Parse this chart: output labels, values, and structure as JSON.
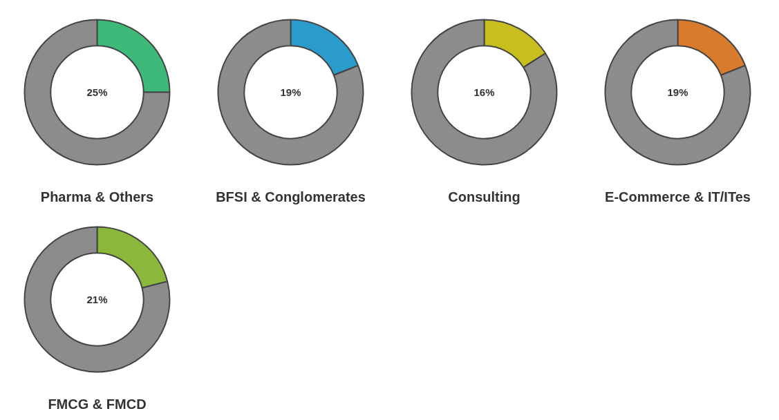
{
  "chart_data": [
    {
      "type": "donut",
      "title": "Pharma & Others",
      "categories": [
        null,
        null
      ],
      "values": [
        25,
        75
      ],
      "colors": [
        "#3dba7a",
        "#8c8c8c"
      ],
      "value_labels": [
        "25%",
        null
      ]
    },
    {
      "type": "donut",
      "title": "BFSI & Conglomerates",
      "categories": [
        null,
        null
      ],
      "values": [
        19,
        81
      ],
      "colors": [
        "#2a9ccc",
        "#8c8c8c"
      ],
      "value_labels": [
        "19%",
        null
      ]
    },
    {
      "type": "donut",
      "title": "Consulting",
      "categories": [
        null,
        null
      ],
      "values": [
        16,
        84
      ],
      "colors": [
        "#c8be1e",
        "#8c8c8c"
      ],
      "value_labels": [
        "16%",
        null
      ]
    },
    {
      "type": "donut",
      "title": "E-Commerce & IT/ITes",
      "categories": [
        null,
        null
      ],
      "values": [
        19,
        81
      ],
      "colors": [
        "#d97b2c",
        "#8c8c8c"
      ],
      "value_labels": [
        "19%",
        null
      ]
    },
    {
      "type": "donut",
      "title": "FMCG & FMCD",
      "categories": [
        null,
        null
      ],
      "values": [
        21,
        79
      ],
      "colors": [
        "#8bb83a",
        "#8c8c8c"
      ],
      "value_labels": [
        "21%",
        null
      ]
    }
  ]
}
